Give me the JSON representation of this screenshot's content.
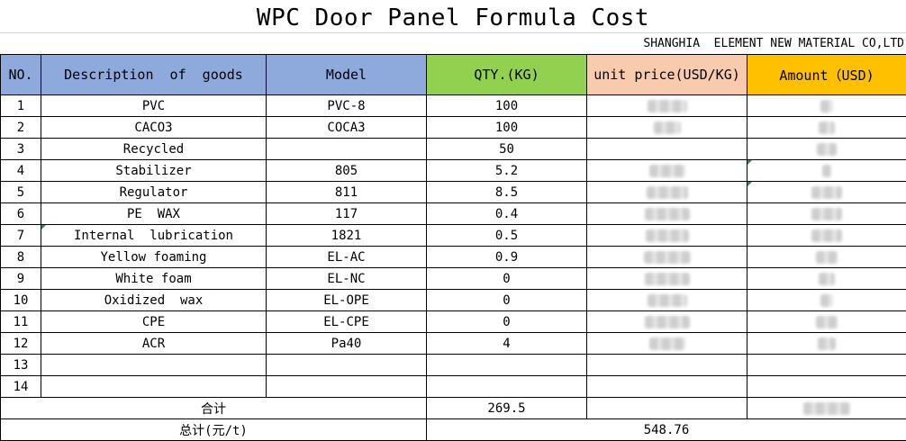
{
  "title": "WPC Door Panel Formula Cost",
  "company": "SHANGHIA  ELEMENT NEW MATERIAL CO,LTD",
  "headers": {
    "no": "NO.",
    "desc": "Description  of  goods",
    "model": "Model",
    "qty": "QTY.(KG)",
    "price": "unit price(USD/KG)",
    "amount": "Amount（USD)"
  },
  "rows": [
    {
      "no": "1",
      "desc": "PVC",
      "model": "PVC-8",
      "qty": "100"
    },
    {
      "no": "2",
      "desc": "CACO3",
      "model": "COCA3",
      "qty": "100"
    },
    {
      "no": "3",
      "desc": "Recycled",
      "model": "",
      "qty": "50"
    },
    {
      "no": "4",
      "desc": "Stabilizer",
      "model": "805",
      "qty": "5.2"
    },
    {
      "no": "5",
      "desc": "Regulator",
      "model": "811",
      "qty": "8.5"
    },
    {
      "no": "6",
      "desc": "PE  WAX",
      "model": "117",
      "qty": "0.4"
    },
    {
      "no": "7",
      "desc": "Internal  lubrication",
      "model": "1821",
      "qty": "0.5"
    },
    {
      "no": "8",
      "desc": "Yellow foaming",
      "model": "EL-AC",
      "qty": "0.9"
    },
    {
      "no": "9",
      "desc": "White foam",
      "model": "EL-NC",
      "qty": "0"
    },
    {
      "no": "10",
      "desc": "Oxidized  wax",
      "model": "EL-OPE",
      "qty": "0"
    },
    {
      "no": "11",
      "desc": "CPE",
      "model": "EL-CPE",
      "qty": "0"
    },
    {
      "no": "12",
      "desc": "ACR",
      "model": "Pa40",
      "qty": "4"
    },
    {
      "no": "13",
      "desc": "",
      "model": "",
      "qty": ""
    },
    {
      "no": "14",
      "desc": "",
      "model": "",
      "qty": ""
    }
  ],
  "sum": {
    "label": "合计",
    "qty": "269.5"
  },
  "total": {
    "label": "总计(元/t)",
    "value": "548.76"
  }
}
